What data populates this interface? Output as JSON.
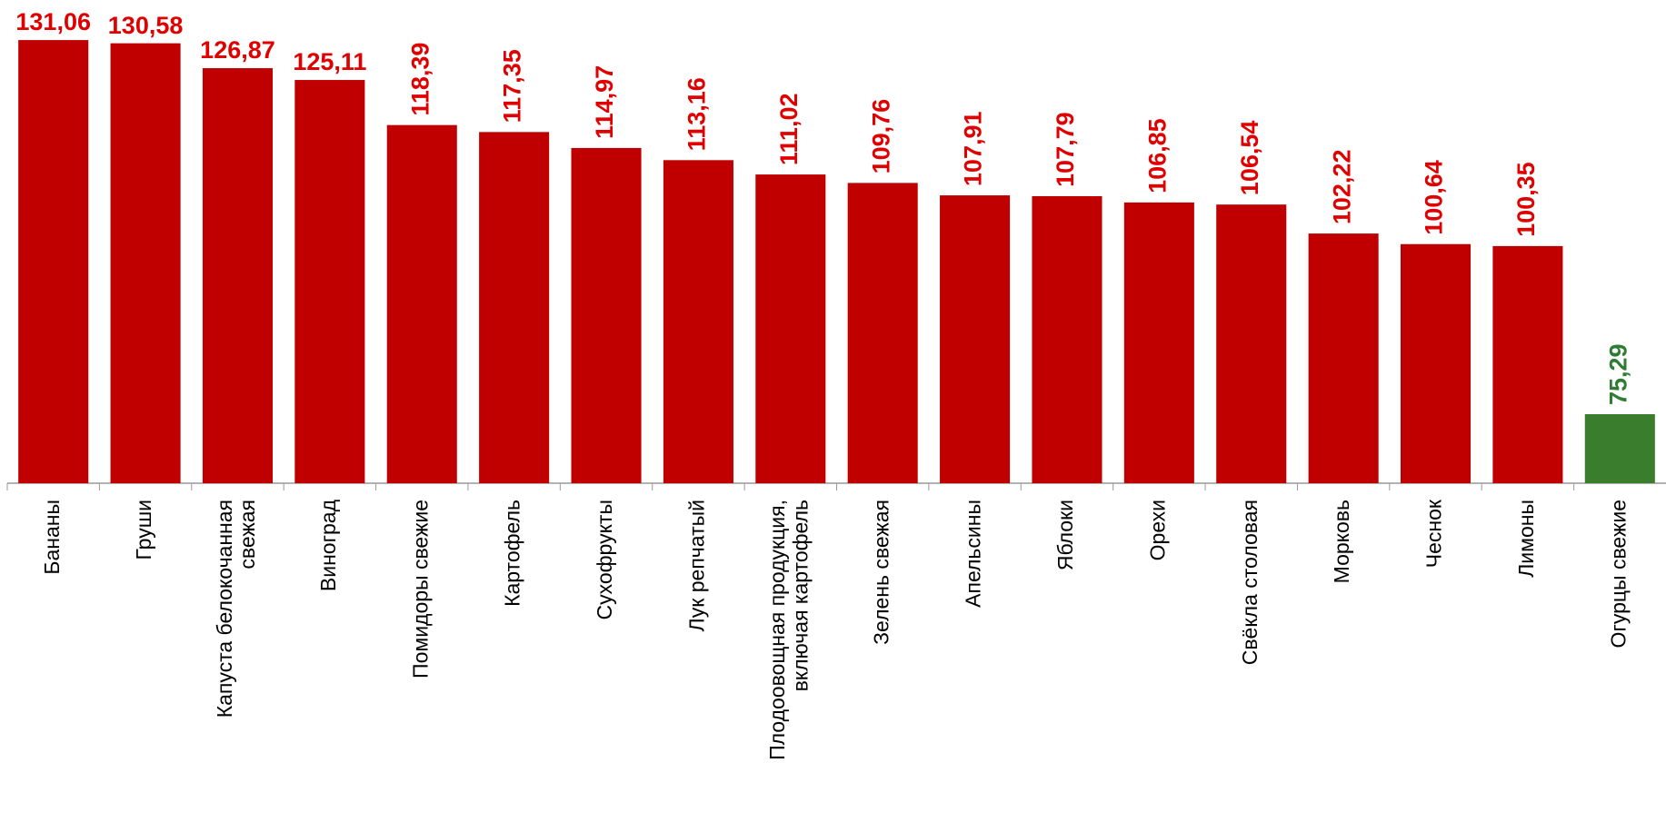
{
  "chart_data": {
    "type": "bar",
    "categories": [
      "Бананы",
      "Груши",
      "Капуста белокочанная\nсвежая",
      "Виноград",
      "Помидоры свежие",
      "Картофель",
      "Сухофрукты",
      "Лук репчатый",
      "Плодоовощная продукция,\nвключая картофель",
      "Зелень свежая",
      "Апельсины",
      "Яблоки",
      "Орехи",
      "Свёкла столовая",
      "Морковь",
      "Чеснок",
      "Лимоны",
      "Огурцы свежие"
    ],
    "values": [
      131.06,
      130.58,
      126.87,
      125.11,
      118.39,
      117.35,
      114.97,
      113.16,
      111.02,
      109.76,
      107.91,
      107.79,
      106.85,
      106.54,
      102.22,
      100.64,
      100.35,
      75.29
    ],
    "value_labels": [
      "131,06",
      "130,58",
      "126,87",
      "125,11",
      "118,39",
      "117,35",
      "114,97",
      "113,16",
      "111,02",
      "109,76",
      "107,91",
      "107,79",
      "106,85",
      "106,54",
      "102,22",
      "100,64",
      "100,35",
      "75,29"
    ],
    "colors": [
      "#c00000",
      "#c00000",
      "#c00000",
      "#c00000",
      "#c00000",
      "#c00000",
      "#c00000",
      "#c00000",
      "#c00000",
      "#c00000",
      "#c00000",
      "#c00000",
      "#c00000",
      "#c00000",
      "#c00000",
      "#c00000",
      "#c00000",
      "#3a7d2c"
    ],
    "label_colors": [
      "#e00000",
      "#e00000",
      "#e00000",
      "#e00000",
      "#e00000",
      "#e00000",
      "#e00000",
      "#e00000",
      "#e00000",
      "#e00000",
      "#e00000",
      "#e00000",
      "#e00000",
      "#e00000",
      "#e00000",
      "#e00000",
      "#e00000",
      "#2e7d32"
    ],
    "ylim": [
      65,
      135
    ]
  }
}
